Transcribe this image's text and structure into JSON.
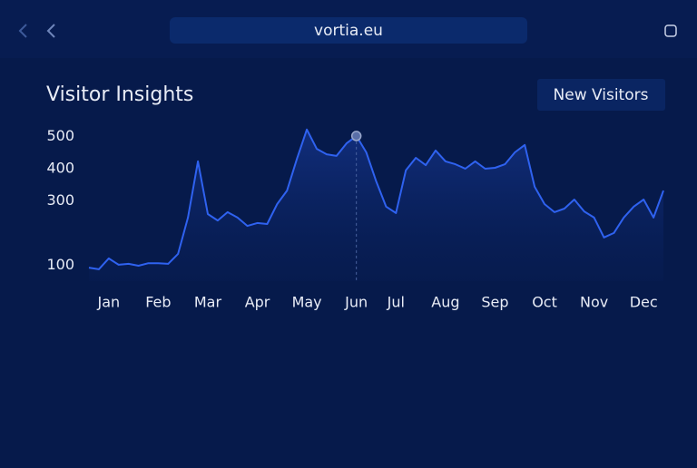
{
  "browser": {
    "url": "vortia.eu"
  },
  "controls": {
    "button": "New Visitors"
  },
  "chart_data": {
    "type": "line",
    "title": "Visitor Insights",
    "categories": [
      null,
      null,
      "Jan",
      null,
      null,
      null,
      null,
      "Feb",
      null,
      null,
      null,
      null,
      "Mar",
      null,
      null,
      null,
      null,
      "Apr",
      null,
      null,
      null,
      null,
      "May",
      null,
      null,
      null,
      null,
      "Jun",
      null,
      null,
      null,
      "Jul",
      null,
      null,
      null,
      null,
      "Aug",
      null,
      null,
      null,
      null,
      "Sep",
      null,
      null,
      null,
      null,
      "Oct",
      null,
      null,
      null,
      null,
      "Nov",
      null,
      null,
      null,
      null,
      "Dec",
      null,
      null
    ],
    "series": [
      {
        "name": "New Visitors",
        "color": "#2f62f0",
        "values": [
          92,
          87,
          121,
          101,
          104,
          98,
          106,
          106,
          104,
          135,
          248,
          423,
          259,
          239,
          265,
          248,
          222,
          231,
          228,
          290,
          332,
          431,
          522,
          462,
          445,
          440,
          479,
          502,
          451,
          361,
          282,
          262,
          395,
          434,
          411,
          457,
          423,
          414,
          400,
          423,
          400,
          403,
          414,
          451,
          474,
          344,
          290,
          265,
          276,
          304,
          267,
          248,
          186,
          200,
          248,
          282,
          304,
          248,
          332
        ]
      }
    ],
    "ylim": [
      50,
      530
    ],
    "yticks": [
      100,
      300,
      400,
      500
    ],
    "grid": false
  }
}
